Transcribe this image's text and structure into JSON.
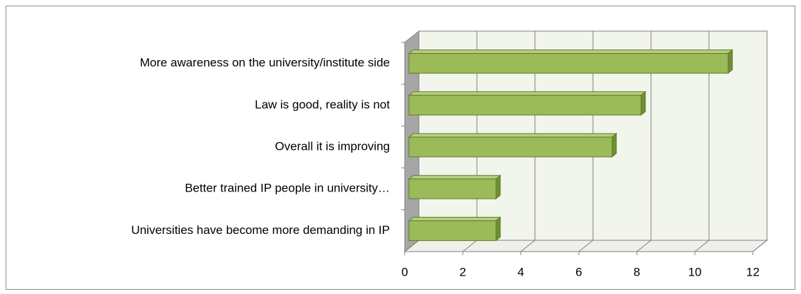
{
  "chart_data": {
    "type": "bar",
    "orientation": "horizontal",
    "three_d": true,
    "categories": [
      "More awareness on the university/institute side",
      "Law is good, reality is not",
      "Overall it is improving",
      "Better trained IP people in university…",
      "Universities have become more demanding in IP"
    ],
    "values": [
      11,
      8,
      7,
      3,
      3
    ],
    "color": "#9bbb59",
    "xlim": [
      0,
      12
    ],
    "xticks": [
      0,
      2,
      4,
      6,
      8,
      10,
      12
    ],
    "grid": true
  }
}
